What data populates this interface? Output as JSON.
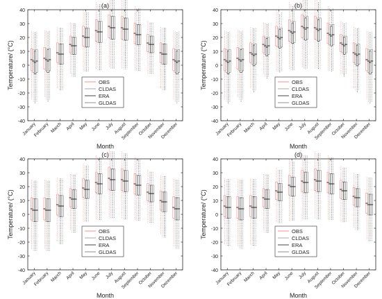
{
  "figure": {
    "legend_placement": "lower-middle",
    "colors": {
      "OBS": "#ff8080",
      "CLDAS": "#a0a0a0",
      "ERA": "#303030",
      "GLDAS": "#808080"
    }
  },
  "chart_data": [
    {
      "type": "box",
      "title": "(a)",
      "xlabel": "Month",
      "ylabel": "Temperature/ (°C)",
      "ylim": [
        -40,
        40
      ],
      "yticks": [
        -40,
        -30,
        -20,
        -10,
        0,
        10,
        20,
        30,
        40
      ],
      "categories": [
        "January",
        "February",
        "March",
        "April",
        "May",
        "June",
        "July",
        "August",
        "September",
        "October",
        "November",
        "December"
      ],
      "legend": [
        "OBS",
        "CLDAS",
        "ERA",
        "GLDAS"
      ],
      "series": [
        {
          "name": "OBS",
          "median": [
            4,
            5,
            9,
            15,
            21,
            25,
            28,
            27,
            23,
            16,
            9,
            4
          ]
        },
        {
          "name": "CLDAS",
          "median": [
            3,
            4,
            8,
            14,
            20,
            24,
            27,
            26,
            22,
            15,
            8,
            3
          ]
        },
        {
          "name": "ERA",
          "median": [
            2,
            3,
            8,
            14,
            20,
            24,
            27,
            26,
            22,
            15,
            8,
            2
          ]
        },
        {
          "name": "GLDAS",
          "median": [
            3,
            4,
            8,
            14,
            20,
            24,
            27,
            26,
            22,
            15,
            8,
            3
          ]
        }
      ]
    },
    {
      "type": "box",
      "title": "(b)",
      "xlabel": "Month",
      "ylabel": "Temperature/ (°C)",
      "ylim": [
        -40,
        40
      ],
      "yticks": [
        -40,
        -30,
        -20,
        -10,
        0,
        10,
        20,
        30,
        40
      ],
      "categories": [
        "January",
        "February",
        "March",
        "April",
        "May",
        "June",
        "July",
        "August",
        "September",
        "October",
        "November",
        "December"
      ],
      "legend": [
        "OBS",
        "CLDAS",
        "ERA",
        "GLDAS"
      ],
      "series": [
        {
          "name": "OBS",
          "median": [
            4,
            5,
            9,
            15,
            21,
            25,
            28,
            27,
            23,
            16,
            9,
            4
          ]
        },
        {
          "name": "CLDAS",
          "median": [
            3,
            4,
            8,
            14,
            20,
            24,
            27,
            26,
            22,
            15,
            8,
            3
          ]
        },
        {
          "name": "ERA",
          "median": [
            2,
            3,
            7,
            13,
            19,
            23,
            26,
            25,
            21,
            14,
            7,
            2
          ]
        },
        {
          "name": "GLDAS",
          "median": [
            3,
            4,
            8,
            14,
            20,
            24,
            27,
            26,
            22,
            15,
            8,
            3
          ]
        }
      ]
    },
    {
      "type": "box",
      "title": "(c)",
      "xlabel": "Month",
      "ylabel": "Temperature/ (°C)",
      "ylim": [
        -40,
        40
      ],
      "yticks": [
        -40,
        -30,
        -20,
        -10,
        0,
        10,
        20,
        30,
        40
      ],
      "categories": [
        "January",
        "February",
        "March",
        "April",
        "May",
        "June",
        "July",
        "August",
        "September",
        "October",
        "November",
        "December"
      ],
      "legend": [
        "OBS",
        "CLDAS",
        "ERA",
        "GLDAS"
      ],
      "series": [
        {
          "name": "OBS",
          "median": [
            4,
            4,
            7,
            12,
            19,
            23,
            26,
            25,
            22,
            16,
            10,
            5
          ]
        },
        {
          "name": "CLDAS",
          "median": [
            3,
            3,
            6,
            11,
            18,
            22,
            25,
            24,
            21,
            15,
            9,
            4
          ]
        },
        {
          "name": "ERA",
          "median": [
            3,
            3,
            6,
            11,
            18,
            22,
            25,
            24,
            21,
            15,
            9,
            4
          ]
        },
        {
          "name": "GLDAS",
          "median": [
            3,
            3,
            6,
            11,
            18,
            22,
            25,
            24,
            21,
            15,
            9,
            4
          ]
        }
      ]
    },
    {
      "type": "box",
      "title": "(d)",
      "xlabel": "Month",
      "ylabel": "Temperature/ (°C)",
      "ylim": [
        -40,
        40
      ],
      "yticks": [
        -40,
        -30,
        -20,
        -10,
        0,
        10,
        20,
        30,
        40
      ],
      "categories": [
        "January",
        "February",
        "March",
        "April",
        "May",
        "June",
        "July",
        "August",
        "September",
        "October",
        "November",
        "December"
      ],
      "legend": [
        "OBS",
        "CLDAS",
        "ERA",
        "GLDAS"
      ],
      "series": [
        {
          "name": "OBS",
          "median": [
            6,
            5,
            6,
            12,
            17,
            21,
            24,
            25,
            23,
            18,
            13,
            8
          ]
        },
        {
          "name": "CLDAS",
          "median": [
            5,
            4,
            5,
            11,
            16,
            20,
            23,
            24,
            22,
            17,
            12,
            7
          ]
        },
        {
          "name": "ERA",
          "median": [
            5,
            4,
            5,
            11,
            16,
            20,
            23,
            24,
            22,
            17,
            12,
            7
          ]
        },
        {
          "name": "GLDAS",
          "median": [
            5,
            4,
            5,
            11,
            16,
            20,
            23,
            24,
            22,
            17,
            12,
            7
          ]
        }
      ]
    }
  ]
}
